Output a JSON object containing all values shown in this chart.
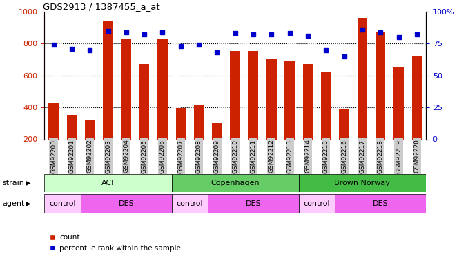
{
  "title": "GDS2913 / 1387455_a_at",
  "samples": [
    "GSM92200",
    "GSM92201",
    "GSM92202",
    "GSM92203",
    "GSM92204",
    "GSM92205",
    "GSM92206",
    "GSM92207",
    "GSM92208",
    "GSM92209",
    "GSM92210",
    "GSM92211",
    "GSM92212",
    "GSM92213",
    "GSM92214",
    "GSM92215",
    "GSM92216",
    "GSM92217",
    "GSM92218",
    "GSM92219",
    "GSM92220"
  ],
  "counts": [
    425,
    355,
    320,
    945,
    830,
    670,
    830,
    395,
    415,
    300,
    755,
    755,
    700,
    695,
    670,
    625,
    390,
    960,
    870,
    655,
    720
  ],
  "percentiles": [
    74,
    71,
    70,
    85,
    84,
    82,
    84,
    73,
    74,
    68,
    83,
    82,
    82,
    83,
    81,
    70,
    65,
    86,
    84,
    80,
    82
  ],
  "ylim_left": [
    200,
    1000
  ],
  "ylim_right": [
    0,
    100
  ],
  "bar_color": "#cc2200",
  "dot_color": "#0000cc",
  "strain_groups": [
    {
      "label": "ACI",
      "start": 0,
      "end": 6,
      "color": "#ccffcc"
    },
    {
      "label": "Copenhagen",
      "start": 7,
      "end": 13,
      "color": "#66cc66"
    },
    {
      "label": "Brown Norway",
      "start": 14,
      "end": 20,
      "color": "#44bb44"
    }
  ],
  "agent_groups": [
    {
      "label": "control",
      "start": 0,
      "end": 1,
      "color": "#ffccff"
    },
    {
      "label": "DES",
      "start": 2,
      "end": 6,
      "color": "#ee66ee"
    },
    {
      "label": "control",
      "start": 7,
      "end": 8,
      "color": "#ffccff"
    },
    {
      "label": "DES",
      "start": 9,
      "end": 13,
      "color": "#ee66ee"
    },
    {
      "label": "control",
      "start": 14,
      "end": 15,
      "color": "#ffccff"
    },
    {
      "label": "DES",
      "start": 16,
      "end": 20,
      "color": "#ee66ee"
    }
  ],
  "ylabel_left_color": "#cc2200",
  "ylabel_right_color": "#0000cc",
  "legend_count_color": "#cc2200",
  "legend_pct_color": "#0000cc"
}
